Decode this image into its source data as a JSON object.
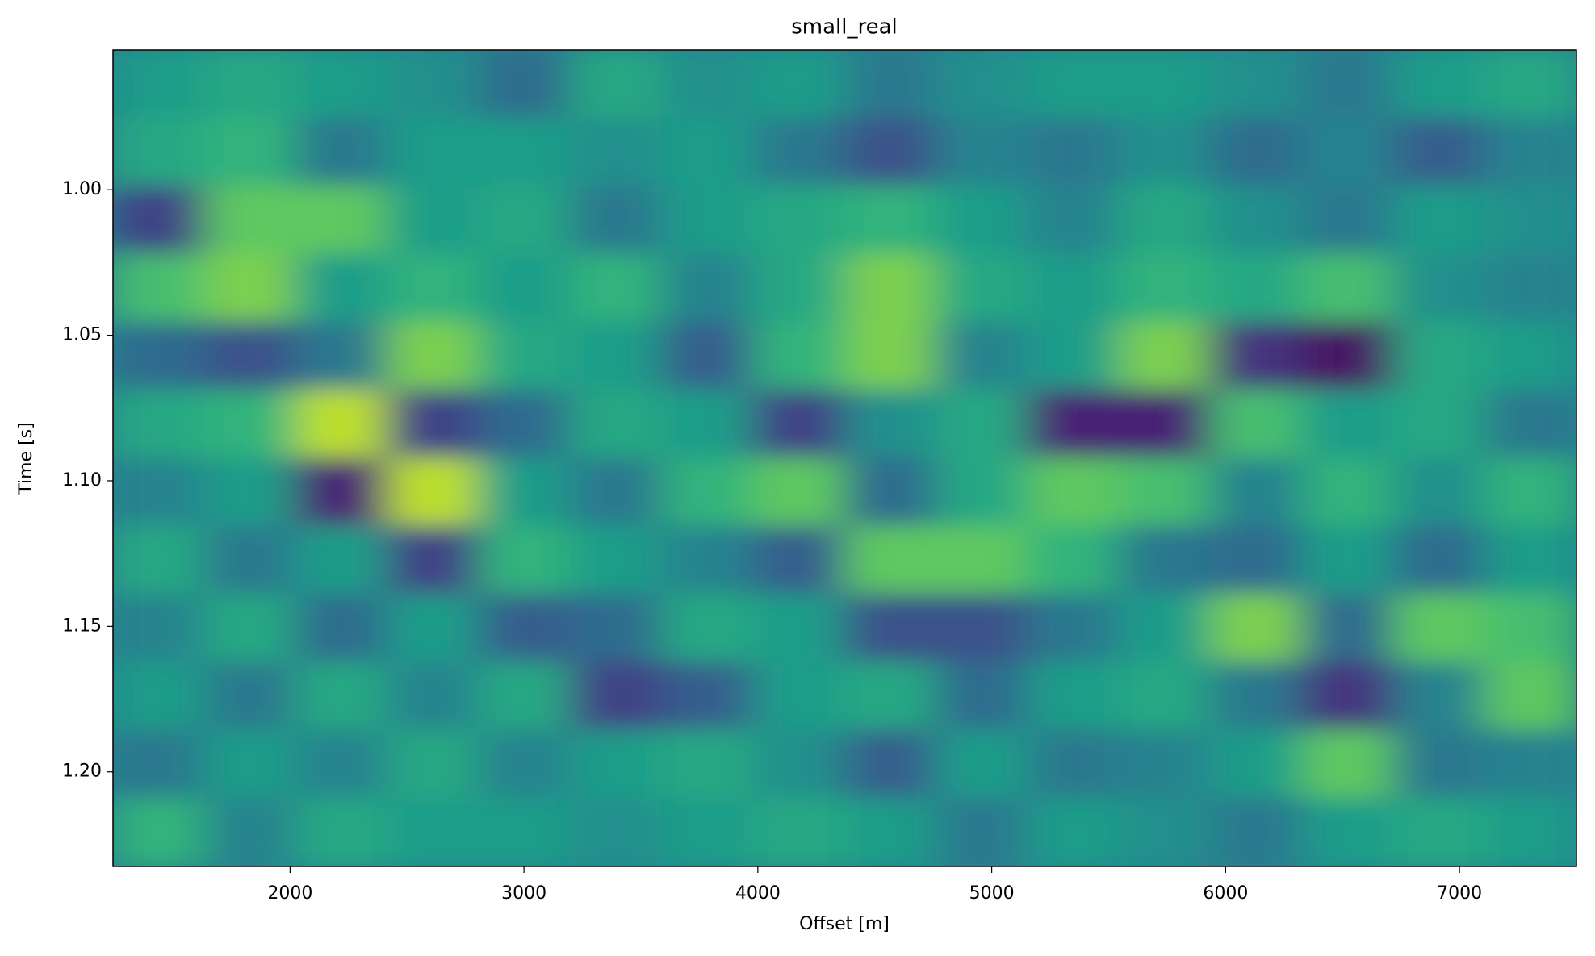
{
  "chart_data": {
    "type": "heatmap",
    "title": "small_real",
    "xlabel": "Offset [m]",
    "ylabel": "Time [s]",
    "xlim": [
      1243,
      7500
    ],
    "ylim": [
      1.2325,
      0.952
    ],
    "xticks": [
      2000,
      3000,
      4000,
      5000,
      6000,
      7000
    ],
    "yticks": [
      {
        "value": 1.0,
        "label": "1.00"
      },
      {
        "value": 1.05,
        "label": "1.05"
      },
      {
        "value": 1.1,
        "label": "1.10"
      },
      {
        "value": 1.15,
        "label": "1.15"
      },
      {
        "value": 1.2,
        "label": "1.20"
      }
    ],
    "colormap": "viridis",
    "clim": [
      -1,
      1
    ],
    "z": [
      [
        0.1,
        0.2,
        0.1,
        0,
        -0.3,
        0.2,
        0,
        0.1,
        -0.2,
        0,
        0.1,
        0.1,
        0,
        -0.2,
        0.1,
        0.2
      ],
      [
        0.2,
        0.3,
        -0.2,
        0.1,
        0.1,
        0,
        0.1,
        -0.2,
        -0.5,
        -0.1,
        -0.2,
        0,
        -0.3,
        -0.1,
        -0.4,
        -0.1
      ],
      [
        -0.6,
        0.5,
        0.5,
        0.1,
        0.2,
        -0.2,
        0.1,
        0.2,
        0.3,
        0.1,
        -0.1,
        0.2,
        0,
        -0.2,
        0.1,
        0
      ],
      [
        0.4,
        0.6,
        0.1,
        0.3,
        0.1,
        0.3,
        -0.1,
        0.2,
        0.6,
        0.2,
        0.1,
        0.3,
        0.2,
        0.4,
        0,
        -0.1
      ],
      [
        -0.3,
        -0.5,
        -0.2,
        0.6,
        0.2,
        0.1,
        -0.4,
        0.3,
        0.6,
        -0.1,
        0.1,
        0.6,
        -0.7,
        -0.9,
        0.2,
        0.1
      ],
      [
        0.2,
        0.3,
        0.8,
        -0.6,
        -0.3,
        0.2,
        0.1,
        -0.6,
        0,
        0.2,
        -0.8,
        -0.8,
        0.4,
        0.1,
        0.2,
        -0.2
      ],
      [
        -0.1,
        0.1,
        -0.8,
        0.8,
        0.1,
        -0.2,
        0.3,
        0.5,
        -0.3,
        0.2,
        0.5,
        0.4,
        -0.1,
        0.3,
        0,
        0.3
      ],
      [
        0.2,
        -0.2,
        0.1,
        -0.6,
        0.3,
        0.1,
        -0.1,
        -0.4,
        0.5,
        0.5,
        0.3,
        -0.2,
        -0.3,
        0.1,
        -0.3,
        0.1
      ],
      [
        -0.1,
        0.2,
        -0.3,
        0.1,
        -0.4,
        -0.3,
        0.2,
        0.1,
        -0.5,
        -0.5,
        -0.2,
        0.1,
        0.6,
        -0.3,
        0.5,
        0.4
      ],
      [
        0.1,
        -0.2,
        0.2,
        -0.1,
        0.2,
        -0.6,
        -0.4,
        0.1,
        0.2,
        -0.3,
        0.1,
        0.2,
        -0.2,
        -0.7,
        -0.1,
        0.5
      ],
      [
        -0.2,
        0.1,
        -0.1,
        0.2,
        -0.1,
        0.1,
        0.2,
        0,
        -0.4,
        0.1,
        -0.2,
        -0.1,
        0.1,
        0.5,
        -0.2,
        -0.1
      ],
      [
        0.3,
        -0.1,
        0.2,
        0.1,
        0.1,
        0,
        0.1,
        0.2,
        0.1,
        -0.2,
        0.1,
        0,
        -0.2,
        0.1,
        0.2,
        0.1
      ]
    ]
  }
}
